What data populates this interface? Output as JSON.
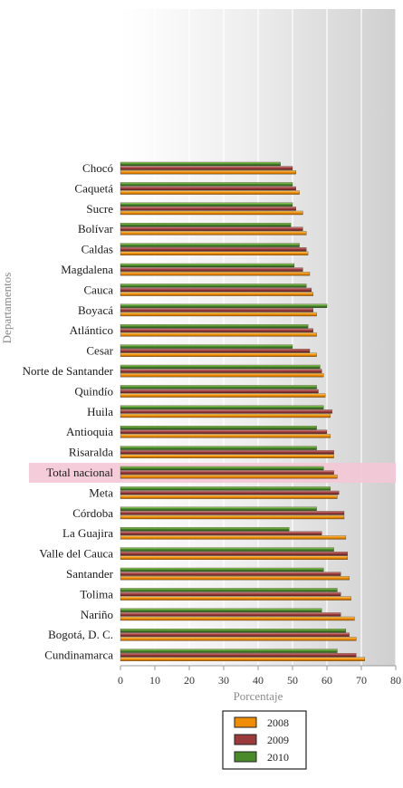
{
  "chart_data": {
    "type": "bar",
    "orientation": "horizontal",
    "title": "",
    "xlabel": "Porcentaje",
    "ylabel": "Departamentos",
    "xlim": [
      0,
      80
    ],
    "xticks": [
      0,
      10,
      20,
      30,
      40,
      50,
      60,
      70,
      80
    ],
    "grid": "vertical",
    "legend_position": "bottom",
    "highlight_category": "Total nacional",
    "highlight_color": "#f3c6d6",
    "categories": [
      "Chocó",
      "Caquetá",
      "Sucre",
      "Bolívar",
      "Caldas",
      "Magdalena",
      "Cauca",
      "Boyacá",
      "Atlántico",
      "Cesar",
      "Norte de Santander",
      "Quindío",
      "Huila",
      "Antioquia",
      "Risaralda",
      "Total nacional",
      "Meta",
      "Córdoba",
      "La Guajira",
      "Valle del Cauca",
      "Santander",
      "Tolima",
      "Nariño",
      "Bogotá, D. C.",
      "Cundinamarca"
    ],
    "series": [
      {
        "name": "2008",
        "color": "#f08c00",
        "values": [
          51,
          52,
          53,
          54,
          54.5,
          55,
          56,
          57,
          57,
          57,
          59,
          59.5,
          61,
          61,
          62,
          63,
          63,
          65,
          65.5,
          66,
          66.5,
          67,
          68,
          68.5,
          71
        ]
      },
      {
        "name": "2009",
        "color": "#9b3a3a",
        "values": [
          50,
          51,
          51,
          53,
          54,
          53,
          55.5,
          56,
          56,
          55,
          58.5,
          57.5,
          61.5,
          60,
          62,
          62,
          63.5,
          65,
          58.5,
          66,
          64,
          64,
          64,
          66.5,
          68.5
        ]
      },
      {
        "name": "2010",
        "color": "#4a8a2a",
        "values": [
          46.5,
          50,
          50,
          49.5,
          52,
          50.5,
          54,
          60,
          54.5,
          50,
          58,
          57,
          59,
          57,
          57,
          59,
          61,
          57,
          49,
          62,
          59,
          63,
          58.5,
          65.5,
          63
        ]
      }
    ]
  }
}
